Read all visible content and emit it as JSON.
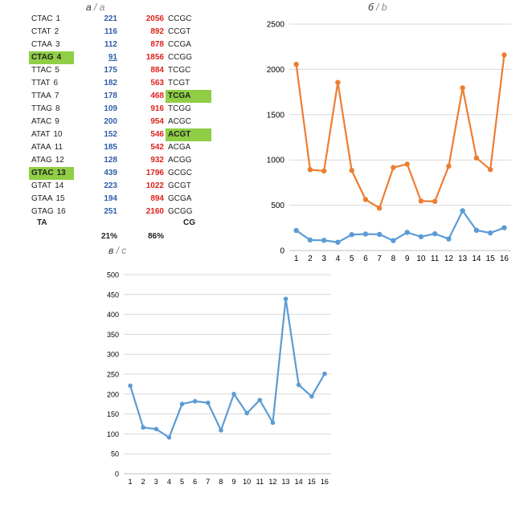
{
  "captions": {
    "a": {
      "ru": "а",
      "sep": "/",
      "en": "a"
    },
    "b": {
      "ru": "б",
      "sep": "/",
      "en": "b"
    },
    "c": {
      "ru": "в",
      "sep": "/",
      "en": "c"
    }
  },
  "table": {
    "rows": [
      {
        "ta": "CTAC",
        "n": "1",
        "v1": "221",
        "v2": "2056",
        "cg": "CCGC"
      },
      {
        "ta": "CTAT",
        "n": "2",
        "v1": "116",
        "v2": "892",
        "cg": "CCGT"
      },
      {
        "ta": "CTAA",
        "n": "3",
        "v1": "112",
        "v2": "878",
        "cg": "CCGA"
      },
      {
        "ta": "CTAG",
        "n": "4",
        "v1": "91",
        "v2": "1856",
        "cg": "CCGG",
        "ta_hl": true,
        "v1_ul": true
      },
      {
        "ta": "TTAC",
        "n": "5",
        "v1": "175",
        "v2": "884",
        "cg": "TCGC"
      },
      {
        "ta": "TTAT",
        "n": "6",
        "v1": "182",
        "v2": "563",
        "cg": "TCGT"
      },
      {
        "ta": "TTAA",
        "n": "7",
        "v1": "178",
        "v2": "468",
        "cg": "TCGA",
        "cg_hl": true
      },
      {
        "ta": "TTAG",
        "n": "8",
        "v1": "109",
        "v2": "916",
        "cg": "TCGG"
      },
      {
        "ta": "ATAC",
        "n": "9",
        "v1": "200",
        "v2": "954",
        "cg": "ACGC"
      },
      {
        "ta": "ATAT",
        "n": "10",
        "v1": "152",
        "v2": "546",
        "cg": "ACGT",
        "cg_hl": true
      },
      {
        "ta": "ATAA",
        "n": "11",
        "v1": "185",
        "v2": "542",
        "cg": "ACGA"
      },
      {
        "ta": "ATAG",
        "n": "12",
        "v1": "128",
        "v2": "932",
        "cg": "ACGG"
      },
      {
        "ta": "GTAC",
        "n": "13",
        "v1": "439",
        "v2": "1796",
        "cg": "GCGC",
        "ta_hl": true
      },
      {
        "ta": "GTAT",
        "n": "14",
        "v1": "223",
        "v2": "1022",
        "cg": "GCGT"
      },
      {
        "ta": "GTAA",
        "n": "15",
        "v1": "194",
        "v2": "894",
        "cg": "GCGA"
      },
      {
        "ta": "GTAG",
        "n": "16",
        "v1": "251",
        "v2": "2160",
        "cg": "GCGG"
      }
    ],
    "footer": {
      "ta_label": "TA",
      "cg_label": "CG",
      "pct1": "21%",
      "pct2": "86%"
    }
  },
  "colors": {
    "blue": "#5b9bd5",
    "orange": "#ed7d31",
    "grid": "#d9d9d9",
    "highlight": "#8fce45"
  },
  "chart_data": [
    {
      "id": "b",
      "type": "line",
      "x": [
        1,
        2,
        3,
        4,
        5,
        6,
        7,
        8,
        9,
        10,
        11,
        12,
        13,
        14,
        15,
        16
      ],
      "series": [
        {
          "color": "#ed7d31",
          "values": [
            2056,
            892,
            878,
            1856,
            884,
            563,
            468,
            916,
            954,
            546,
            542,
            932,
            1796,
            1022,
            894,
            2160
          ]
        },
        {
          "color": "#5b9bd5",
          "values": [
            221,
            116,
            112,
            91,
            175,
            182,
            178,
            109,
            200,
            152,
            185,
            128,
            439,
            223,
            194,
            251
          ]
        }
      ],
      "ylim": [
        0,
        2500
      ],
      "yticks": [
        0,
        500,
        1000,
        1500,
        2000,
        2500
      ],
      "grid": true,
      "title": "",
      "xlabel": "",
      "ylabel": ""
    },
    {
      "id": "c",
      "type": "line",
      "x": [
        1,
        2,
        3,
        4,
        5,
        6,
        7,
        8,
        9,
        10,
        11,
        12,
        13,
        14,
        15,
        16
      ],
      "series": [
        {
          "color": "#5b9bd5",
          "values": [
            221,
            116,
            112,
            91,
            175,
            182,
            178,
            109,
            200,
            152,
            185,
            128,
            439,
            223,
            194,
            251
          ]
        }
      ],
      "ylim": [
        0,
        500
      ],
      "yticks": [
        0,
        50,
        100,
        150,
        200,
        250,
        300,
        350,
        400,
        450,
        500
      ],
      "grid": true,
      "title": "",
      "xlabel": "",
      "ylabel": ""
    }
  ]
}
